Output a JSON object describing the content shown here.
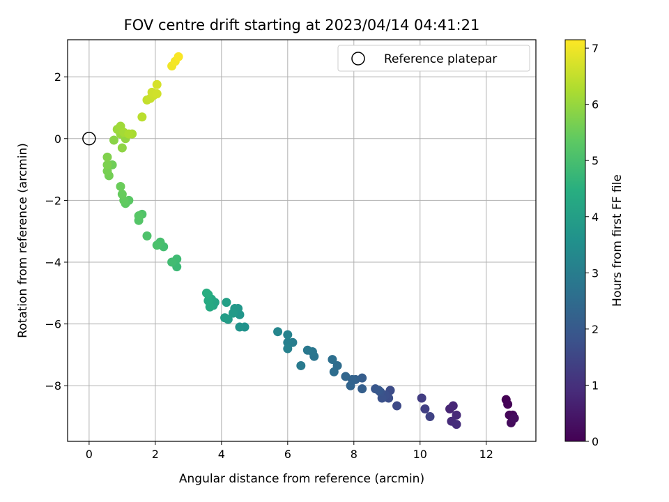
{
  "chart_data": {
    "type": "scatter",
    "title": "FOV centre drift starting at 2023/04/14 04:41:21",
    "xlabel": "Angular distance from reference (arcmin)",
    "ylabel": "Rotation from reference (arcmin)",
    "xlim": [
      -0.65,
      13.5
    ],
    "ylim": [
      -9.8,
      3.2
    ],
    "xticks": [
      0,
      2,
      4,
      6,
      8,
      10,
      12
    ],
    "yticks": [
      -8,
      -6,
      -4,
      -2,
      0,
      2
    ],
    "xtick_labels": [
      "0",
      "2",
      "4",
      "6",
      "8",
      "10",
      "12"
    ],
    "ytick_labels": [
      "−8",
      "−6",
      "−4",
      "−2",
      "0",
      "2"
    ],
    "grid": true,
    "colormap": "viridis",
    "colorbar": {
      "label": "Hours from first FF file",
      "range": [
        0,
        7.15
      ],
      "ticks": [
        0,
        1,
        2,
        3,
        4,
        5,
        6,
        7
      ],
      "tick_labels": [
        "0",
        "1",
        "2",
        "3",
        "4",
        "5",
        "6",
        "7"
      ]
    },
    "legend": {
      "position": "upper right",
      "entries": [
        "Reference platepar"
      ]
    },
    "reference_point": {
      "x": 0,
      "y": 0,
      "marker": "open circle"
    },
    "points": [
      {
        "x": 12.6,
        "y": -8.45,
        "c": 0.0
      },
      {
        "x": 12.65,
        "y": -8.6,
        "c": 0.05
      },
      {
        "x": 12.7,
        "y": -8.95,
        "c": 0.1
      },
      {
        "x": 12.8,
        "y": -8.95,
        "c": 0.15
      },
      {
        "x": 12.75,
        "y": -9.2,
        "c": 0.2
      },
      {
        "x": 12.85,
        "y": -9.05,
        "c": 0.25
      },
      {
        "x": 10.9,
        "y": -8.75,
        "c": 0.75
      },
      {
        "x": 11.0,
        "y": -8.65,
        "c": 0.8
      },
      {
        "x": 11.1,
        "y": -8.95,
        "c": 0.85
      },
      {
        "x": 10.95,
        "y": -9.15,
        "c": 0.9
      },
      {
        "x": 11.1,
        "y": -9.25,
        "c": 0.95
      },
      {
        "x": 10.05,
        "y": -8.4,
        "c": 1.3
      },
      {
        "x": 10.15,
        "y": -8.75,
        "c": 1.35
      },
      {
        "x": 10.3,
        "y": -9.0,
        "c": 1.4
      },
      {
        "x": 9.3,
        "y": -8.65,
        "c": 1.6
      },
      {
        "x": 9.1,
        "y": -8.15,
        "c": 1.65
      },
      {
        "x": 9.05,
        "y": -8.4,
        "c": 1.7
      },
      {
        "x": 8.95,
        "y": -8.3,
        "c": 1.75
      },
      {
        "x": 8.85,
        "y": -8.4,
        "c": 1.8
      },
      {
        "x": 8.8,
        "y": -8.2,
        "c": 1.85
      },
      {
        "x": 8.65,
        "y": -8.1,
        "c": 1.9
      },
      {
        "x": 8.75,
        "y": -8.15,
        "c": 1.95
      },
      {
        "x": 8.25,
        "y": -7.75,
        "c": 2.1
      },
      {
        "x": 8.25,
        "y": -8.1,
        "c": 2.15
      },
      {
        "x": 8.05,
        "y": -7.8,
        "c": 2.2
      },
      {
        "x": 7.95,
        "y": -7.8,
        "c": 2.25
      },
      {
        "x": 7.9,
        "y": -8.0,
        "c": 2.3
      },
      {
        "x": 7.75,
        "y": -7.7,
        "c": 2.35
      },
      {
        "x": 7.5,
        "y": -7.35,
        "c": 2.5
      },
      {
        "x": 7.4,
        "y": -7.55,
        "c": 2.55
      },
      {
        "x": 7.35,
        "y": -7.15,
        "c": 2.6
      },
      {
        "x": 6.8,
        "y": -7.05,
        "c": 2.75
      },
      {
        "x": 6.75,
        "y": -6.9,
        "c": 2.8
      },
      {
        "x": 6.6,
        "y": -6.85,
        "c": 2.85
      },
      {
        "x": 6.4,
        "y": -7.35,
        "c": 2.9
      },
      {
        "x": 6.15,
        "y": -6.6,
        "c": 3.0
      },
      {
        "x": 6.0,
        "y": -6.6,
        "c": 3.05
      },
      {
        "x": 6.0,
        "y": -6.8,
        "c": 3.1
      },
      {
        "x": 6.0,
        "y": -6.35,
        "c": 3.15
      },
      {
        "x": 5.7,
        "y": -6.25,
        "c": 3.25
      },
      {
        "x": 4.7,
        "y": -6.1,
        "c": 3.6
      },
      {
        "x": 4.55,
        "y": -6.1,
        "c": 3.65
      },
      {
        "x": 4.55,
        "y": -5.7,
        "c": 3.7
      },
      {
        "x": 4.5,
        "y": -5.5,
        "c": 3.75
      },
      {
        "x": 4.4,
        "y": -5.5,
        "c": 3.8
      },
      {
        "x": 4.35,
        "y": -5.65,
        "c": 3.85
      },
      {
        "x": 4.2,
        "y": -5.85,
        "c": 3.9
      },
      {
        "x": 4.1,
        "y": -5.8,
        "c": 3.95
      },
      {
        "x": 4.15,
        "y": -5.3,
        "c": 4.0
      },
      {
        "x": 3.8,
        "y": -5.3,
        "c": 4.15
      },
      {
        "x": 3.75,
        "y": -5.4,
        "c": 4.2
      },
      {
        "x": 3.7,
        "y": -5.2,
        "c": 4.25
      },
      {
        "x": 3.65,
        "y": -5.45,
        "c": 4.3
      },
      {
        "x": 3.6,
        "y": -5.25,
        "c": 4.35
      },
      {
        "x": 3.6,
        "y": -5.05,
        "c": 4.4
      },
      {
        "x": 3.55,
        "y": -5.0,
        "c": 4.45
      },
      {
        "x": 2.65,
        "y": -4.15,
        "c": 4.8
      },
      {
        "x": 2.65,
        "y": -3.9,
        "c": 4.85
      },
      {
        "x": 2.5,
        "y": -4.0,
        "c": 4.9
      },
      {
        "x": 2.25,
        "y": -3.5,
        "c": 4.95
      },
      {
        "x": 2.15,
        "y": -3.35,
        "c": 5.0
      },
      {
        "x": 2.05,
        "y": -3.45,
        "c": 5.05
      },
      {
        "x": 1.75,
        "y": -3.15,
        "c": 5.1
      },
      {
        "x": 1.6,
        "y": -2.45,
        "c": 5.15
      },
      {
        "x": 1.5,
        "y": -2.65,
        "c": 5.2
      },
      {
        "x": 1.5,
        "y": -2.5,
        "c": 5.25
      },
      {
        "x": 1.2,
        "y": -2.0,
        "c": 5.3
      },
      {
        "x": 1.1,
        "y": -2.1,
        "c": 5.35
      },
      {
        "x": 1.05,
        "y": -2.0,
        "c": 5.4
      },
      {
        "x": 1.0,
        "y": -1.8,
        "c": 5.45
      },
      {
        "x": 0.95,
        "y": -1.55,
        "c": 5.5
      },
      {
        "x": 0.7,
        "y": -0.85,
        "c": 5.55
      },
      {
        "x": 0.6,
        "y": -1.2,
        "c": 5.6
      },
      {
        "x": 0.55,
        "y": -1.05,
        "c": 5.65
      },
      {
        "x": 0.55,
        "y": -0.85,
        "c": 5.7
      },
      {
        "x": 0.55,
        "y": -0.6,
        "c": 5.75
      },
      {
        "x": 0.75,
        "y": -0.05,
        "c": 5.85
      },
      {
        "x": 1.0,
        "y": -0.3,
        "c": 5.9
      },
      {
        "x": 1.1,
        "y": 0.0,
        "c": 5.95
      },
      {
        "x": 0.95,
        "y": 0.15,
        "c": 6.0
      },
      {
        "x": 0.85,
        "y": 0.3,
        "c": 6.05
      },
      {
        "x": 0.95,
        "y": 0.4,
        "c": 6.1
      },
      {
        "x": 1.05,
        "y": 0.2,
        "c": 6.15
      },
      {
        "x": 1.3,
        "y": 0.15,
        "c": 6.2
      },
      {
        "x": 1.2,
        "y": 0.15,
        "c": 6.25
      },
      {
        "x": 1.6,
        "y": 0.7,
        "c": 6.4
      },
      {
        "x": 1.75,
        "y": 1.25,
        "c": 6.5
      },
      {
        "x": 1.85,
        "y": 1.3,
        "c": 6.55
      },
      {
        "x": 1.95,
        "y": 1.4,
        "c": 6.6
      },
      {
        "x": 1.9,
        "y": 1.5,
        "c": 6.62
      },
      {
        "x": 2.05,
        "y": 1.45,
        "c": 6.65
      },
      {
        "x": 2.05,
        "y": 1.75,
        "c": 6.7
      },
      {
        "x": 2.5,
        "y": 2.35,
        "c": 7.0
      },
      {
        "x": 2.6,
        "y": 2.5,
        "c": 7.05
      },
      {
        "x": 2.7,
        "y": 2.65,
        "c": 7.1
      }
    ]
  }
}
